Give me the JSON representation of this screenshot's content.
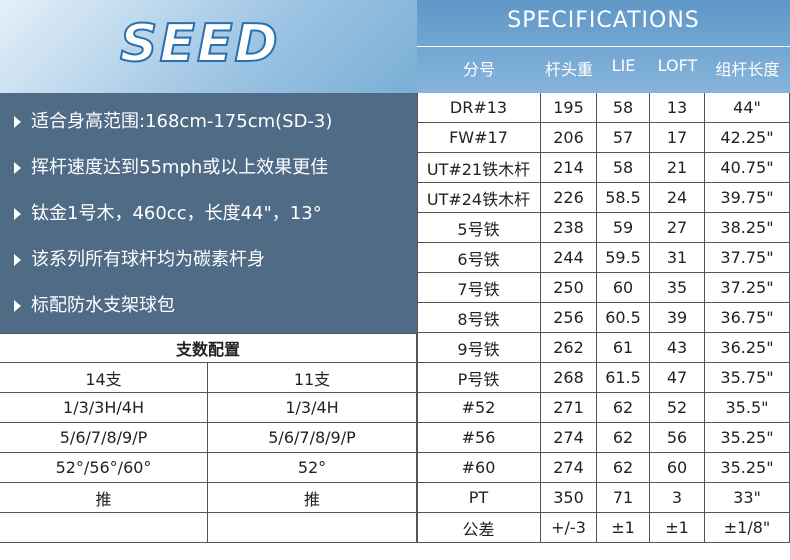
{
  "logo": "SEED",
  "features": [
    "适合身高范围:168cm-175cm(SD-3)",
    "挥杆速度达到55mph或以上效果更佳",
    "钛金1号木，460cc，长度44\"，13°",
    "该系列所有球杆均为碳素杆身",
    "标配防水支架球包"
  ],
  "config": {
    "title": "支数配置",
    "columns": [
      "14支",
      "11支"
    ],
    "rows": [
      [
        "1/3/3H/4H",
        "1/3/4H"
      ],
      [
        "5/6/7/8/9/P",
        "5/6/7/8/9/P"
      ],
      [
        "52°/56°/60°",
        "52°"
      ],
      [
        "推",
        "推"
      ]
    ]
  },
  "specs": {
    "title": "SPECIFICATIONS",
    "columns": [
      "分号",
      "杆头重",
      "LIE",
      "LOFT",
      "组杆长度"
    ],
    "rows": [
      [
        "DR#13",
        "195",
        "58",
        "13",
        "44\""
      ],
      [
        "FW#17",
        "206",
        "57",
        "17",
        "42.25\""
      ],
      [
        "UT#21铁木杆",
        "214",
        "58",
        "21",
        "40.75\""
      ],
      [
        "UT#24铁木杆",
        "226",
        "58.5",
        "24",
        "39.75\""
      ],
      [
        "5号铁",
        "238",
        "59",
        "27",
        "38.25\""
      ],
      [
        "6号铁",
        "244",
        "59.5",
        "31",
        "37.75\""
      ],
      [
        "7号铁",
        "250",
        "60",
        "35",
        "37.25\""
      ],
      [
        "8号铁",
        "256",
        "60.5",
        "39",
        "36.75\""
      ],
      [
        "9号铁",
        "262",
        "61",
        "43",
        "36.25\""
      ],
      [
        "P号铁",
        "268",
        "61.5",
        "47",
        "35.75\""
      ],
      [
        "#52",
        "271",
        "62",
        "52",
        "35.5\""
      ],
      [
        "#56",
        "274",
        "62",
        "56",
        "35.25\""
      ],
      [
        "#60",
        "274",
        "62",
        "60",
        "35.25\""
      ],
      [
        "PT",
        "350",
        "71",
        "3",
        "33\""
      ],
      [
        "公差",
        "+/-3",
        "±1",
        "±1",
        "±1/8\""
      ]
    ]
  }
}
